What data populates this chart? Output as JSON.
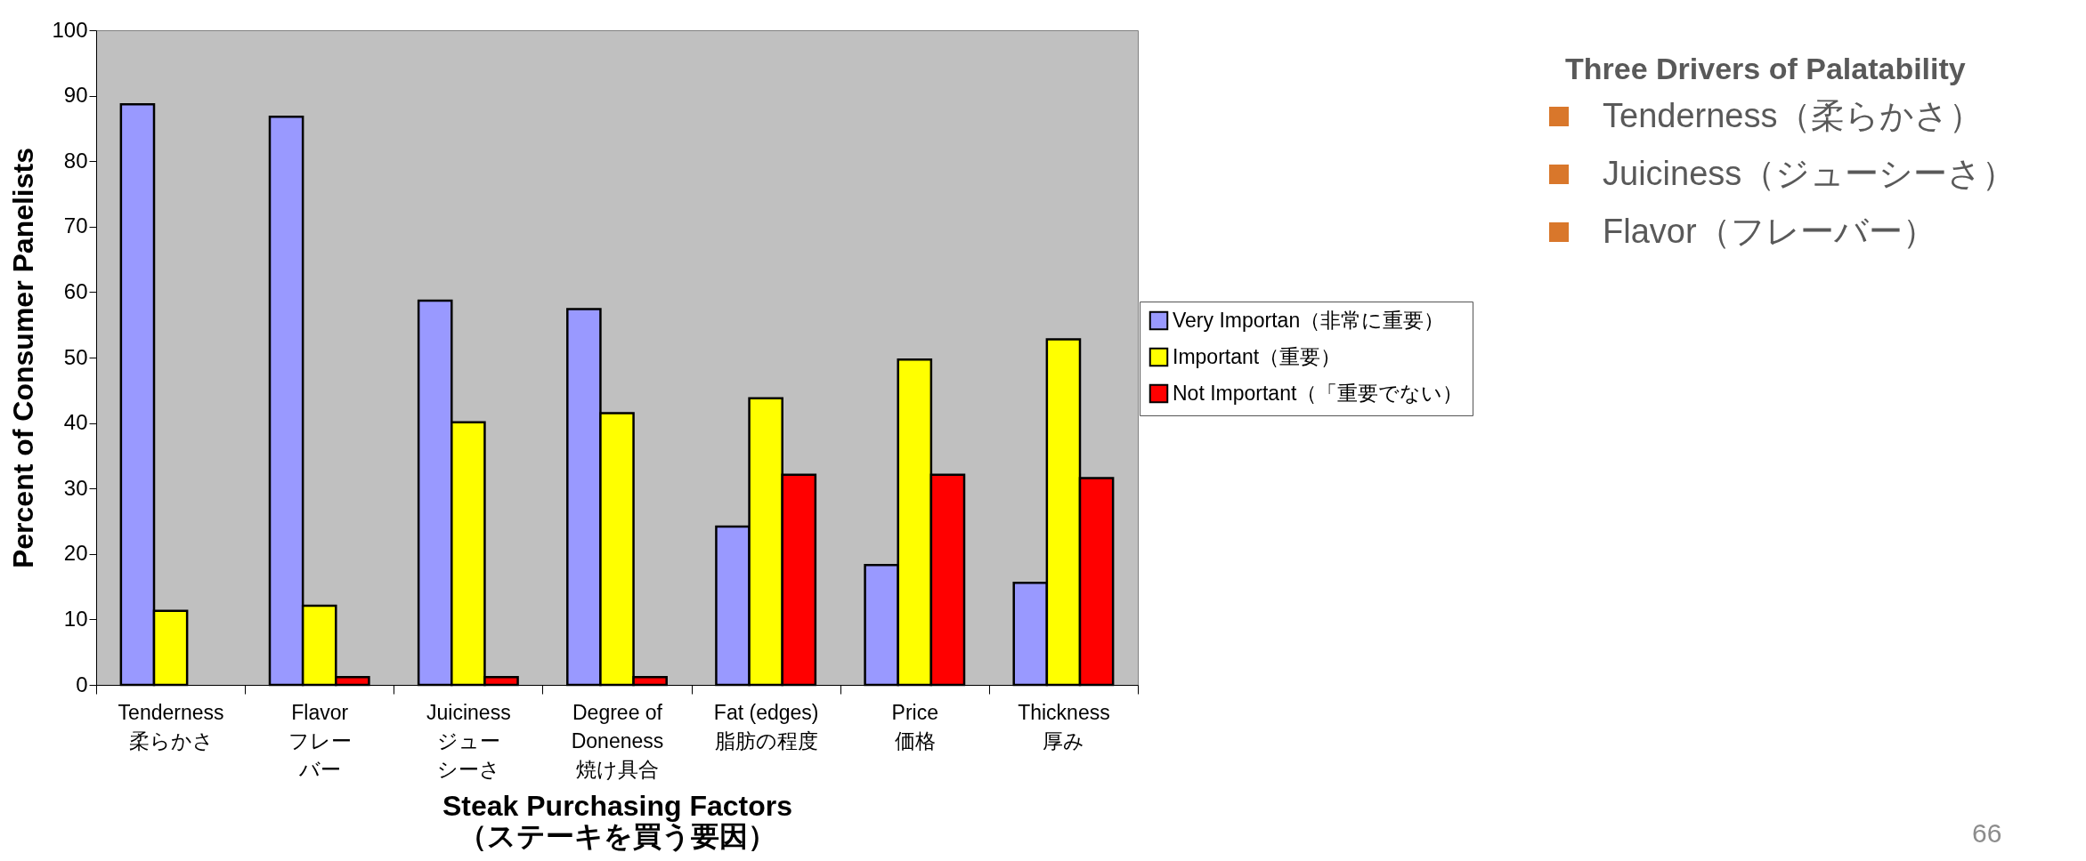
{
  "chart_data": {
    "type": "bar",
    "xlabel": "Steak Purchasing Factors\n（ステーキを買う要因）",
    "ylabel": "Percent of Consumer Panelists",
    "categories": [
      "Tenderness\n柔らかさ",
      "Flavor\nフレーバー",
      "Juiciness\nジューシーさ",
      "Degree of\nDoneness\n焼け具合",
      "Fat (edges)\n\n脂肪の程度",
      "Price\n価格",
      "Thickness\n厚み"
    ],
    "series": [
      {
        "name": "Very Importan（非常に重要）",
        "color": "#9999ff",
        "values": [
          88.7,
          86.8,
          58.7,
          57.4,
          24.2,
          18.3,
          15.6
        ]
      },
      {
        "name": "Important（重要）",
        "color": "#ffff00",
        "values": [
          11.3,
          12.1,
          40.1,
          41.5,
          43.8,
          49.7,
          52.8
        ]
      },
      {
        "name": "Not Important（「重要でない）",
        "color": "#ff0000",
        "values": [
          null,
          1.2,
          1.2,
          1.2,
          32.1,
          32.1,
          31.6
        ]
      }
    ],
    "ylim": [
      0,
      100
    ],
    "yticks": [
      0,
      10,
      20,
      30,
      40,
      50,
      60,
      70,
      80,
      90,
      100
    ],
    "grid": false,
    "legend": "right",
    "annotations": [
      "Three Drivers of Palatability",
      "Tenderness（柔らかさ）",
      "Juiciness（ジューシーさ）",
      "Flavor（フレーバー）",
      "66"
    ]
  }
}
